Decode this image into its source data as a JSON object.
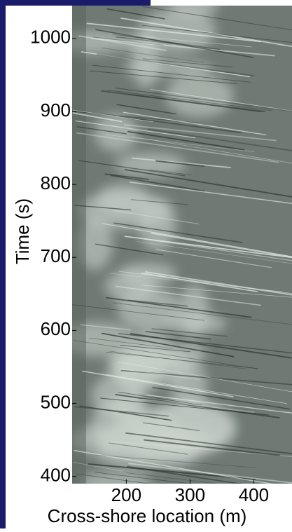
{
  "chart_data": {
    "type": "image",
    "xlabel": "Cross-shore location (m)",
    "ylabel": "Time (s)",
    "xlim": [
      115,
      460
    ],
    "ylim": [
      390,
      1045
    ],
    "xticks": [
      200,
      300,
      400
    ],
    "yticks": [
      400,
      500,
      600,
      700,
      800,
      900,
      1000
    ]
  }
}
